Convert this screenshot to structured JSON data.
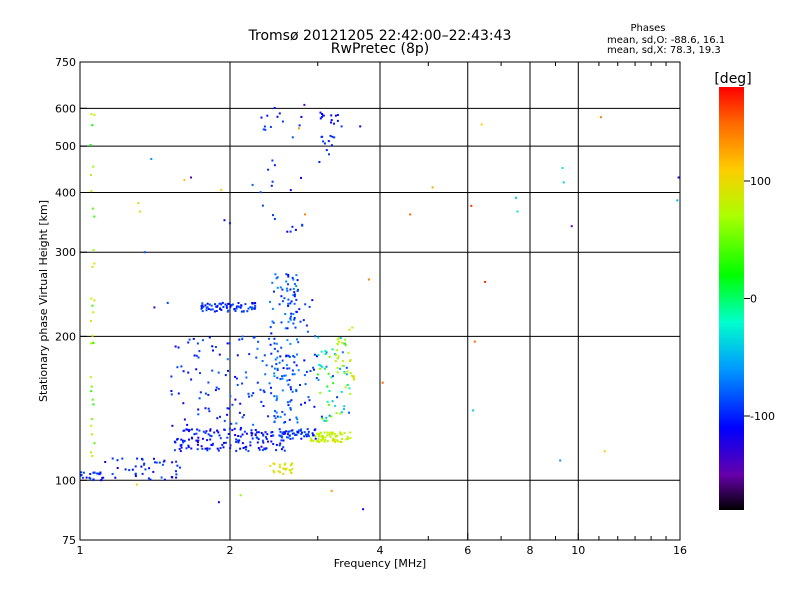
{
  "header": {
    "title_line1": "Tromsø 20121205 22:42:00–22:43:43",
    "title_line2": "RwPretec (8p)"
  },
  "stats": {
    "heading": "Phases",
    "line_o": "mean, sd,O: -88.6, 16.1",
    "line_x": "mean, sd,X:  78.3, 19.3"
  },
  "colorbar": {
    "label": "[deg]",
    "min": -180,
    "max": 180,
    "ticks": [
      {
        "value": 100,
        "label": "100"
      },
      {
        "value": 0,
        "label": "0"
      },
      {
        "value": -100,
        "label": "-100"
      }
    ],
    "stops": [
      {
        "v": -180,
        "c": "#000000"
      },
      {
        "v": -150,
        "c": "#6600aa"
      },
      {
        "v": -110,
        "c": "#0000ff"
      },
      {
        "v": -60,
        "c": "#0099ff"
      },
      {
        "v": -20,
        "c": "#00ffcc"
      },
      {
        "v": 20,
        "c": "#00ff00"
      },
      {
        "v": 70,
        "c": "#aaff00"
      },
      {
        "v": 110,
        "c": "#ffcc00"
      },
      {
        "v": 150,
        "c": "#ff6600"
      },
      {
        "v": 180,
        "c": "#ff0000"
      }
    ]
  },
  "chart_data": {
    "type": "scatter",
    "xlabel": "Frequency [MHz]",
    "ylabel": "Stationary phase Virtual Height [km]",
    "xscale": "log",
    "yscale": "log",
    "xlim": [
      1,
      16
    ],
    "ylim": [
      75,
      750
    ],
    "xticks": [
      {
        "value": 1,
        "label": "1"
      },
      {
        "value": 2,
        "label": "2"
      },
      {
        "value": 4,
        "label": "4"
      },
      {
        "value": 6,
        "label": "6"
      },
      {
        "value": 8,
        "label": "8"
      },
      {
        "value": 10,
        "label": "10"
      },
      {
        "value": 16,
        "label": "16"
      }
    ],
    "yticks": [
      {
        "value": 75,
        "label": "75"
      },
      {
        "value": 100,
        "label": "100"
      },
      {
        "value": 200,
        "label": "200"
      },
      {
        "value": 300,
        "label": "300"
      },
      {
        "value": 400,
        "label": "400"
      },
      {
        "value": 500,
        "label": "500"
      },
      {
        "value": 600,
        "label": "600"
      },
      {
        "value": 750,
        "label": "750"
      }
    ],
    "x_gridlines": [
      2,
      4,
      6,
      8,
      10
    ],
    "y_gridlines": [
      100,
      200,
      300,
      400,
      500,
      600
    ],
    "x_minor_ticks": [
      3,
      5,
      7,
      9,
      11,
      12,
      13,
      14,
      15
    ],
    "clusters": [
      {
        "x": [
          1.0,
          1.12
        ],
        "y": [
          100,
          104
        ],
        "phase": [
          -110,
          -85
        ],
        "n": 22
      },
      {
        "x": [
          1.1,
          1.6
        ],
        "y": [
          100,
          112
        ],
        "phase": [
          -120,
          -80
        ],
        "n": 45
      },
      {
        "x": [
          1.55,
          2.6
        ],
        "y": [
          115,
          128
        ],
        "phase": [
          -125,
          -85
        ],
        "n": 150
      },
      {
        "x": [
          2.5,
          3.0
        ],
        "y": [
          122,
          128
        ],
        "phase": [
          -110,
          -75
        ],
        "n": 50
      },
      {
        "x": [
          1.5,
          2.1
        ],
        "y": [
          130,
          200
        ],
        "phase": [
          -120,
          -80
        ],
        "n": 60
      },
      {
        "x": [
          1.95,
          2.5
        ],
        "y": [
          120,
          200
        ],
        "phase": [
          -105,
          -70
        ],
        "n": 55
      },
      {
        "x": [
          2.4,
          2.75
        ],
        "y": [
          130,
          270
        ],
        "phase": [
          -110,
          -60
        ],
        "n": 140
      },
      {
        "x": [
          2.75,
          3.0
        ],
        "y": [
          140,
          240
        ],
        "phase": [
          -110,
          -75
        ],
        "n": 25
      },
      {
        "x": [
          1.75,
          2.25
        ],
        "y": [
          225,
          235
        ],
        "phase": [
          -115,
          -80
        ],
        "n": 70
      },
      {
        "x": [
          2.3,
          2.8
        ],
        "y": [
          330,
          620
        ],
        "phase": [
          -115,
          -80
        ],
        "n": 30
      },
      {
        "x": [
          3.0,
          3.3
        ],
        "y": [
          450,
          590
        ],
        "phase": [
          -115,
          -90
        ],
        "n": 25
      },
      {
        "x": [
          2.9,
          3.5
        ],
        "y": [
          120,
          126
        ],
        "phase": [
          70,
          95
        ],
        "n": 70
      },
      {
        "x": [
          3.0,
          3.5
        ],
        "y": [
          130,
          200
        ],
        "phase": [
          -100,
          80
        ],
        "n": 60
      },
      {
        "x": [
          3.25,
          3.55
        ],
        "y": [
          160,
          210
        ],
        "phase": [
          60,
          95
        ],
        "n": 25
      },
      {
        "x": [
          2.4,
          2.7
        ],
        "y": [
          103,
          109
        ],
        "phase": [
          85,
          105
        ],
        "n": 24
      },
      {
        "x": [
          1.05,
          1.07
        ],
        "y": [
          110,
          640
        ],
        "phase": [
          20,
          100
        ],
        "n": 32
      }
    ],
    "points": [
      {
        "x": 1.62,
        "y": 425,
        "phase": 115
      },
      {
        "x": 1.67,
        "y": 430,
        "phase": -150
      },
      {
        "x": 1.39,
        "y": 470,
        "phase": -60
      },
      {
        "x": 1.41,
        "y": 230,
        "phase": -130
      },
      {
        "x": 1.5,
        "y": 235,
        "phase": -90
      },
      {
        "x": 1.31,
        "y": 380,
        "phase": 90
      },
      {
        "x": 1.32,
        "y": 365,
        "phase": 80
      },
      {
        "x": 1.35,
        "y": 300,
        "phase": -85
      },
      {
        "x": 1.92,
        "y": 405,
        "phase": 110
      },
      {
        "x": 1.95,
        "y": 350,
        "phase": -120
      },
      {
        "x": 2.0,
        "y": 345,
        "phase": -100
      },
      {
        "x": 2.22,
        "y": 415,
        "phase": -80
      },
      {
        "x": 2.75,
        "y": 545,
        "phase": 130
      },
      {
        "x": 2.83,
        "y": 360,
        "phase": 140
      },
      {
        "x": 2.82,
        "y": 610,
        "phase": -140
      },
      {
        "x": 3.35,
        "y": 550,
        "phase": -90
      },
      {
        "x": 3.65,
        "y": 550,
        "phase": -110
      },
      {
        "x": 3.8,
        "y": 263,
        "phase": 140
      },
      {
        "x": 4.05,
        "y": 160,
        "phase": 150
      },
      {
        "x": 4.6,
        "y": 360,
        "phase": 150
      },
      {
        "x": 5.1,
        "y": 410,
        "phase": 125
      },
      {
        "x": 6.1,
        "y": 375,
        "phase": 165
      },
      {
        "x": 6.2,
        "y": 195,
        "phase": 150
      },
      {
        "x": 6.4,
        "y": 555,
        "phase": 110
      },
      {
        "x": 6.5,
        "y": 260,
        "phase": 170
      },
      {
        "x": 6.15,
        "y": 140,
        "phase": -40
      },
      {
        "x": 7.5,
        "y": 390,
        "phase": -40
      },
      {
        "x": 7.55,
        "y": 365,
        "phase": -30
      },
      {
        "x": 9.3,
        "y": 450,
        "phase": -30
      },
      {
        "x": 9.35,
        "y": 420,
        "phase": -40
      },
      {
        "x": 9.7,
        "y": 340,
        "phase": -150
      },
      {
        "x": 9.2,
        "y": 110,
        "phase": -60
      },
      {
        "x": 11.1,
        "y": 575,
        "phase": 140
      },
      {
        "x": 11.3,
        "y": 115,
        "phase": 110
      },
      {
        "x": 15.9,
        "y": 430,
        "phase": -120
      },
      {
        "x": 15.8,
        "y": 385,
        "phase": -50
      },
      {
        "x": 1.9,
        "y": 90,
        "phase": -120
      },
      {
        "x": 2.1,
        "y": 93,
        "phase": 60
      },
      {
        "x": 3.7,
        "y": 87,
        "phase": -110
      },
      {
        "x": 3.2,
        "y": 95,
        "phase": 130
      },
      {
        "x": 1.3,
        "y": 98,
        "phase": 110
      }
    ]
  }
}
